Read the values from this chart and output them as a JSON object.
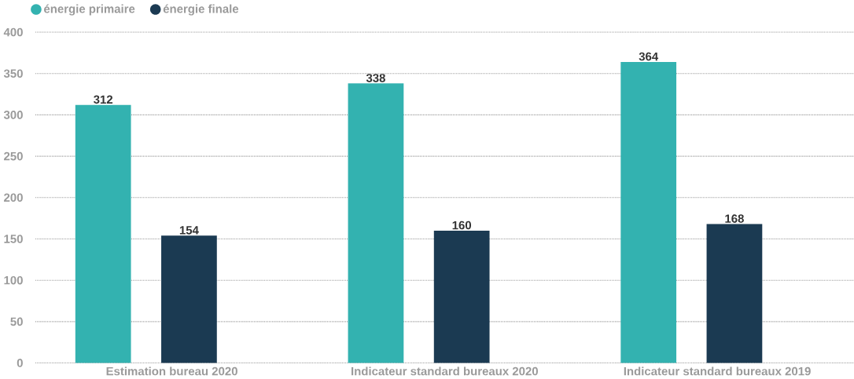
{
  "chart_data": {
    "type": "bar",
    "categories": [
      "Estimation bureau 2020",
      "Indicateur standard bureaux 2020",
      "Indicateur standard bureaux 2019"
    ],
    "series": [
      {
        "name": "énergie primaire",
        "color": "#33b2b0",
        "values": [
          312,
          338,
          364
        ]
      },
      {
        "name": "énergie finale",
        "color": "#1b3a52",
        "values": [
          154,
          160,
          168
        ]
      }
    ],
    "ylim": [
      0,
      400
    ],
    "yticks": [
      0,
      50,
      100,
      150,
      200,
      250,
      300,
      350,
      400
    ],
    "grid": "y",
    "legend": "top left",
    "data_labels": true
  }
}
